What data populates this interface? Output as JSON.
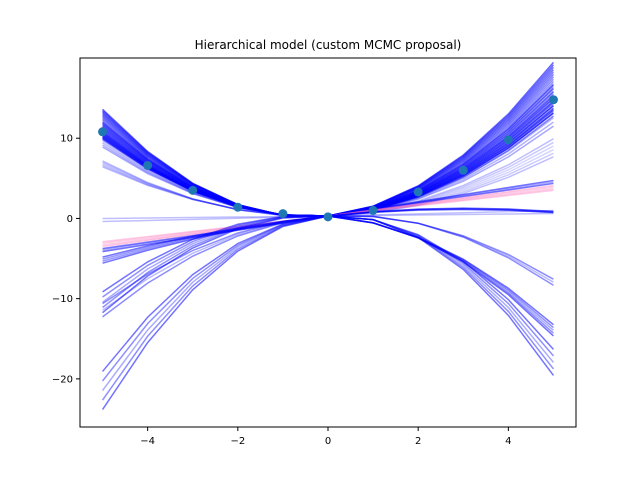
{
  "chart_data": {
    "type": "line",
    "title": "Hierarchical model (custom MCMC proposal)",
    "xlabel": "",
    "ylabel": "",
    "xlim": [
      -5.5,
      5.5
    ],
    "ylim": [
      -26,
      20
    ],
    "x": [
      -5,
      -4,
      -3,
      -2,
      -1,
      0,
      1,
      2,
      3,
      4,
      5
    ],
    "xticks": [
      -4,
      -2,
      0,
      2,
      4
    ],
    "yticks": [
      -20,
      -10,
      0,
      10
    ],
    "xtick_labels": [
      "−4",
      "−2",
      "0",
      "2",
      "4"
    ],
    "ytick_labels": [
      "−20",
      "−10",
      "0",
      "10"
    ],
    "grid": false,
    "observed_points": {
      "x": [
        -5,
        -4,
        -3,
        -2,
        -1,
        0,
        1,
        2,
        3,
        4,
        5
      ],
      "y": [
        10.8,
        6.6,
        3.5,
        1.4,
        0.6,
        0.2,
        1.0,
        3.3,
        6.0,
        9.8,
        14.8
      ]
    },
    "posterior_curves": [
      {
        "a": 0.55,
        "b": 0.45,
        "c": 0.3,
        "color": "#0000ff",
        "opacity": 0.6,
        "spread": 0.18,
        "count": 22
      },
      {
        "a": 0.5,
        "b": 0.38,
        "c": 0.3,
        "color": "#0000ff",
        "opacity": 0.5,
        "spread": 0.12,
        "count": 10
      },
      {
        "a": 0.45,
        "b": 0.35,
        "c": 0.3,
        "color": "#0000ff",
        "opacity": 0.35,
        "spread": 0.12,
        "count": 8
      },
      {
        "a": 0.3,
        "b": 0.2,
        "c": 0.3,
        "color": "#0000ff",
        "opacity": 0.25,
        "spread": 0.1,
        "count": 6
      },
      {
        "a": 0.0,
        "b": 0.85,
        "c": 0.3,
        "color": "#0000ff",
        "opacity": 0.55,
        "spread": 0.05,
        "count": 3
      },
      {
        "a": 0.0,
        "b": 0.7,
        "c": 0.3,
        "color": "#ff69b4",
        "opacity": 0.35,
        "spread": 0.08,
        "count": 5
      },
      {
        "a": 0.0,
        "b": 0.1,
        "c": 0.3,
        "color": "#0000ff",
        "opacity": 0.25,
        "spread": 0.05,
        "count": 2
      },
      {
        "a": -0.5,
        "b": -0.35,
        "c": 0.3,
        "color": "#0000ff",
        "opacity": 0.55,
        "spread": 0.08,
        "count": 5
      },
      {
        "a": -0.8,
        "b": 0.35,
        "c": 0.3,
        "color": "#0000ff",
        "opacity": 0.55,
        "spread": 0.1,
        "count": 5
      },
      {
        "a": -0.1,
        "b": 0.6,
        "c": 0.3,
        "color": "#0000ff",
        "opacity": 0.55,
        "spread": 0.06,
        "count": 4
      },
      {
        "a": -0.4,
        "b": 0.35,
        "c": 0.3,
        "color": "#0000ff",
        "opacity": 0.45,
        "spread": 0.06,
        "count": 3
      }
    ]
  }
}
